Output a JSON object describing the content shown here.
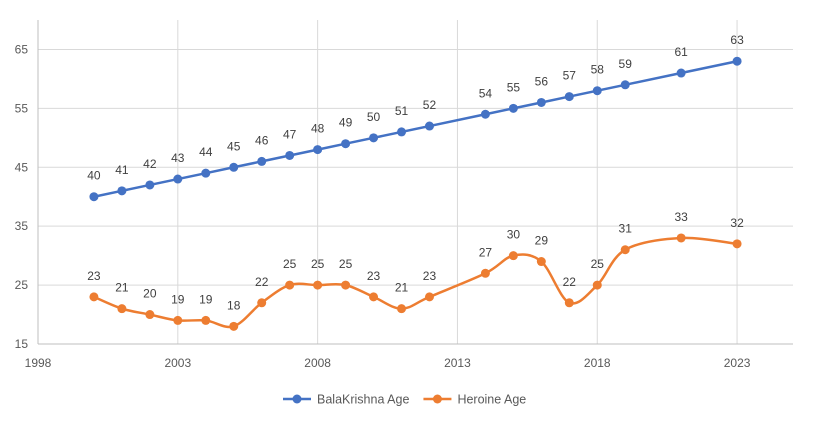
{
  "chart_data": {
    "type": "line",
    "title": "",
    "xlabel": "",
    "ylabel": "",
    "xlim": [
      1998,
      2025
    ],
    "ylim": [
      15,
      70
    ],
    "x_ticks": [
      1998,
      2003,
      2008,
      2013,
      2018,
      2023
    ],
    "y_ticks": [
      15,
      25,
      35,
      45,
      55,
      65
    ],
    "grid": "both",
    "legend": "bottom-center",
    "series": [
      {
        "name": "BalaKrishna Age",
        "color": "#4472C4",
        "smooth": false,
        "x": [
          2000,
          2001,
          2002,
          2003,
          2004,
          2005,
          2006,
          2007,
          2008,
          2009,
          2010,
          2011,
          2012,
          2014,
          2015,
          2016,
          2017,
          2018,
          2019,
          2021,
          2023
        ],
        "values": [
          40,
          41,
          42,
          43,
          44,
          45,
          46,
          47,
          48,
          49,
          50,
          51,
          52,
          54,
          55,
          56,
          57,
          58,
          59,
          61,
          63
        ]
      },
      {
        "name": "Heroine Age",
        "color": "#ED7D31",
        "smooth": true,
        "x": [
          2000,
          2001,
          2002,
          2003,
          2004,
          2005,
          2006,
          2007,
          2008,
          2009,
          2010,
          2011,
          2012,
          2014,
          2015,
          2016,
          2017,
          2018,
          2019,
          2021,
          2023
        ],
        "values": [
          23,
          21,
          20,
          19,
          19,
          18,
          22,
          25,
          25,
          25,
          23,
          21,
          23,
          27,
          30,
          29,
          22,
          25,
          31,
          33,
          32
        ]
      }
    ]
  }
}
